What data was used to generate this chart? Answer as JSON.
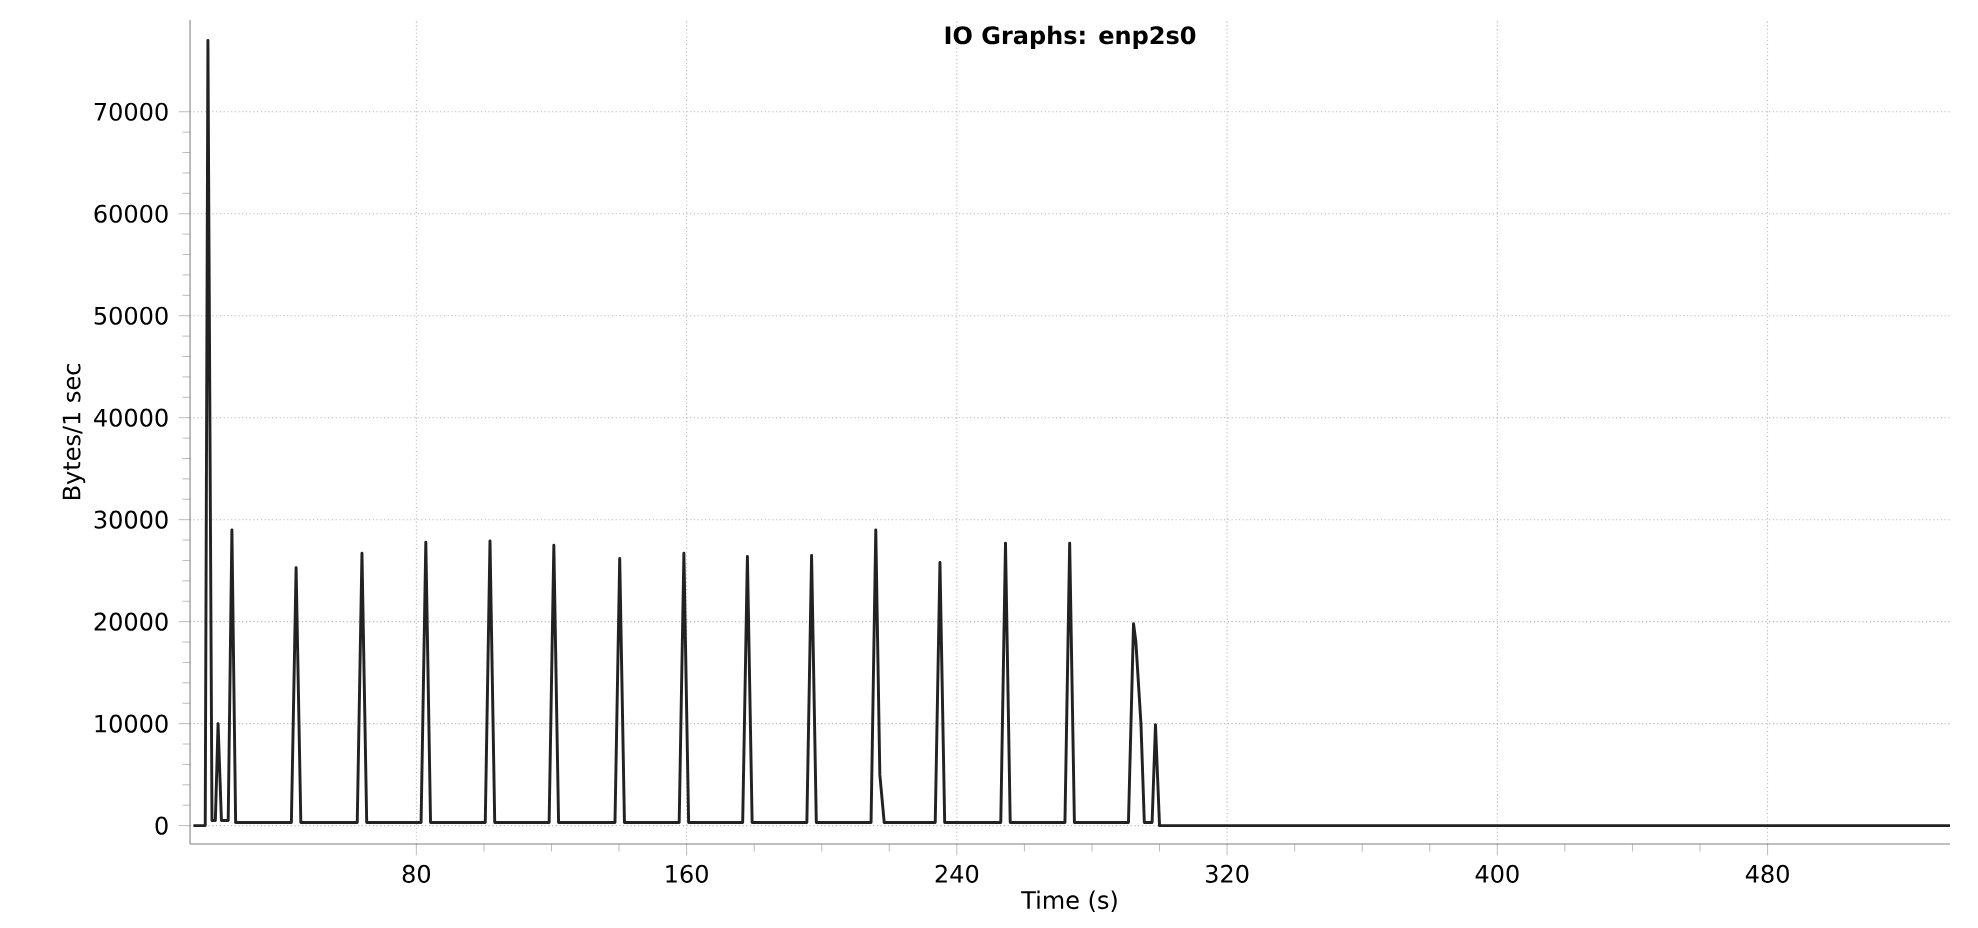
{
  "chart_data": {
    "type": "line",
    "title": "IO Graphs: enp2s0",
    "xlabel": "Time (s)",
    "ylabel": "Bytes/1 sec",
    "xlim": [
      13,
      534
    ],
    "ylim": [
      -1800,
      79000
    ],
    "xticks": [
      80,
      160,
      240,
      320,
      400,
      480
    ],
    "yticks": [
      0,
      10000,
      20000,
      30000,
      40000,
      50000,
      60000,
      70000
    ],
    "grid": true,
    "marker": "none",
    "line_style": "solid",
    "series": [
      {
        "color": "#222222",
        "x": [
          14,
          17.5,
          18.3,
          19.5,
          20.5,
          21.3,
          22.3,
          24.3,
          25.4,
          26.5,
          43,
          44.4,
          45.8,
          62.5,
          63.9,
          65.3,
          81.4,
          82.8,
          84.2,
          100.4,
          101.8,
          103.2,
          119.3,
          120.7,
          122.1,
          138.8,
          140.2,
          141.6,
          157.8,
          159.2,
          160.6,
          176.6,
          178,
          179.4,
          195.6,
          197,
          198.4,
          214.6,
          216,
          217.2,
          218.5,
          233.6,
          235,
          236.4,
          253,
          254.4,
          255.8,
          272,
          273.4,
          274.8,
          290.8,
          292.3,
          293,
          294.5,
          295.5,
          297.8,
          298.8,
          300,
          534
        ],
        "values": [
          0,
          0,
          77000,
          500,
          500,
          10000,
          500,
          500,
          29000,
          300,
          300,
          25300,
          300,
          300,
          26700,
          300,
          300,
          27800,
          300,
          300,
          27900,
          300,
          300,
          27500,
          300,
          300,
          26200,
          300,
          300,
          26700,
          300,
          300,
          26400,
          300,
          300,
          26500,
          300,
          300,
          29000,
          5000,
          300,
          300,
          25800,
          300,
          300,
          27700,
          300,
          300,
          27700,
          300,
          300,
          19800,
          18000,
          10000,
          300,
          300,
          9900,
          0,
          0
        ]
      }
    ]
  }
}
